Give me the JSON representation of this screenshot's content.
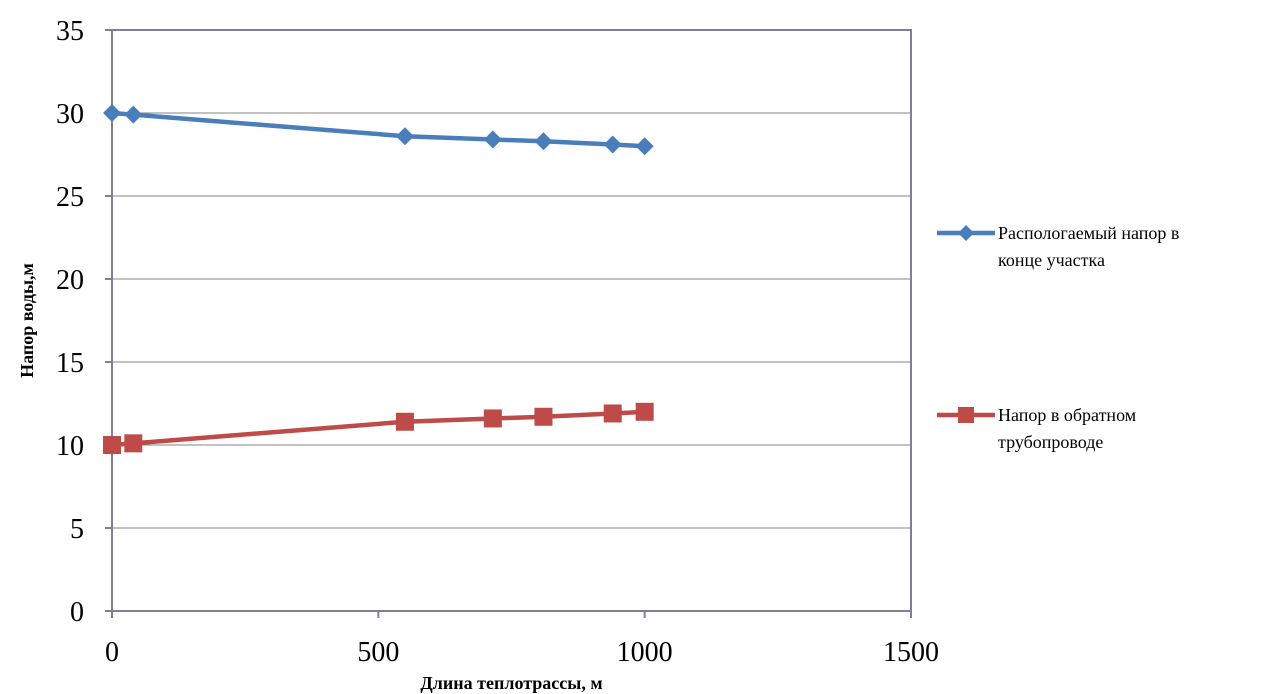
{
  "chart_data": {
    "type": "line",
    "title": "",
    "xlabel": "Длина теплотрассы, м",
    "ylabel": "Напор воды,м",
    "xlim": [
      0,
      1500
    ],
    "ylim": [
      0,
      35
    ],
    "xticks": [
      0,
      500,
      1000,
      1500
    ],
    "yticks": [
      0,
      5,
      10,
      15,
      20,
      25,
      30,
      35
    ],
    "grid": "horizontal",
    "legend_position": "right",
    "series": [
      {
        "name": "Распологаемый напор в конце участка",
        "name_lines": [
          "Распологаемый напор в",
          "конце участка"
        ],
        "color": "#4a7ebb",
        "marker": "diamond",
        "x": [
          0,
          40,
          550,
          715,
          810,
          940,
          1000
        ],
        "y": [
          30,
          29.9,
          28.6,
          28.4,
          28.3,
          28.1,
          28.0
        ]
      },
      {
        "name": "Напор в обратном трубопроводе",
        "name_lines": [
          "Напор в обратном",
          "трубопроводе"
        ],
        "color": "#be4b48",
        "marker": "square",
        "x": [
          0,
          40,
          550,
          715,
          810,
          940,
          1000
        ],
        "y": [
          10,
          10.1,
          11.4,
          11.6,
          11.7,
          11.9,
          12.0
        ]
      }
    ]
  }
}
